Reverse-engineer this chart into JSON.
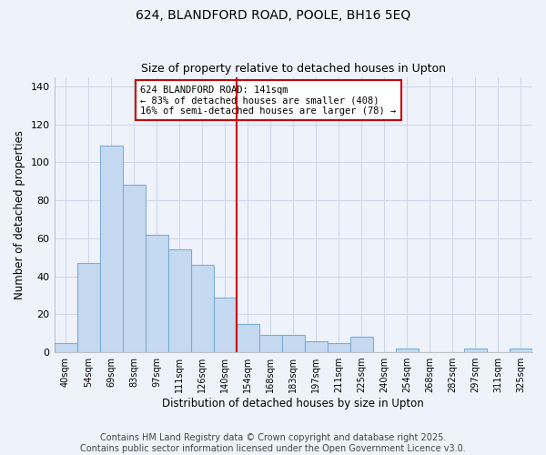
{
  "title": "624, BLANDFORD ROAD, POOLE, BH16 5EQ",
  "subtitle": "Size of property relative to detached houses in Upton",
  "xlabel": "Distribution of detached houses by size in Upton",
  "ylabel": "Number of detached properties",
  "bar_labels": [
    "40sqm",
    "54sqm",
    "69sqm",
    "83sqm",
    "97sqm",
    "111sqm",
    "126sqm",
    "140sqm",
    "154sqm",
    "168sqm",
    "183sqm",
    "197sqm",
    "211sqm",
    "225sqm",
    "240sqm",
    "254sqm",
    "268sqm",
    "282sqm",
    "297sqm",
    "311sqm",
    "325sqm"
  ],
  "bar_values": [
    5,
    47,
    109,
    88,
    62,
    54,
    46,
    29,
    15,
    9,
    9,
    6,
    5,
    8,
    0,
    2,
    0,
    0,
    2,
    0,
    2
  ],
  "bar_color": "#c5d9f1",
  "bar_edge_color": "#7bafd4",
  "highlight_index": 7,
  "highlight_line_color": "#cc0000",
  "annotation_text": "624 BLANDFORD ROAD: 141sqm\n← 83% of detached houses are smaller (408)\n16% of semi-detached houses are larger (78) →",
  "annotation_box_edge_color": "#cc0000",
  "ylim": [
    0,
    145
  ],
  "yticks": [
    0,
    20,
    40,
    60,
    80,
    100,
    120,
    140
  ],
  "grid_color": "#d0d8e8",
  "background_color": "#eef2fb",
  "footer_line1": "Contains HM Land Registry data © Crown copyright and database right 2025.",
  "footer_line2": "Contains public sector information licensed under the Open Government Licence v3.0.",
  "title_fontsize": 10,
  "subtitle_fontsize": 9,
  "annotation_fontsize": 7.5,
  "footer_fontsize": 7
}
